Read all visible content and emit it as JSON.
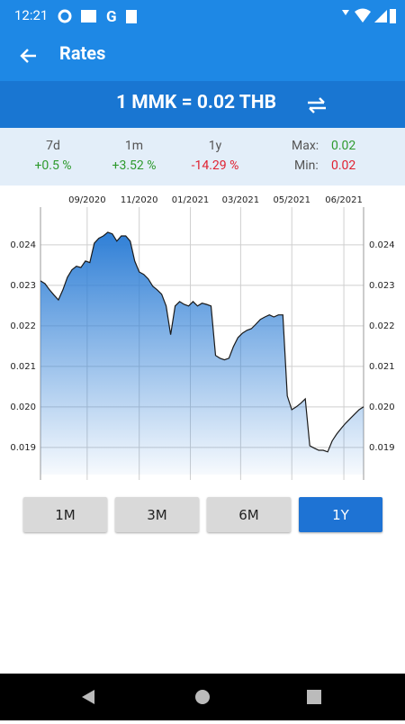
{
  "status_bar": {
    "time": "12:21"
  },
  "app_bar": {
    "title": "Rates"
  },
  "rate": "1 MMK = 0.02 THB",
  "stats": [
    {
      "label": "7d",
      "value": "+0.5 %"
    },
    {
      "label": "1m",
      "value": "+3.52 %"
    },
    {
      "label": "1y",
      "value": "-14.29 %"
    }
  ],
  "range": {
    "max_label": "Max:",
    "max": "0.02",
    "min_label": "Min:",
    "min": "0.02"
  },
  "chart_data": {
    "type": "area",
    "color": "#2f7fd6",
    "line_color": "#1a1a1a",
    "grid": true,
    "values": [
      0.02311,
      0.02304,
      0.02289,
      0.02276,
      0.02264,
      0.02289,
      0.0232,
      0.02338,
      0.02347,
      0.02344,
      0.0236,
      0.02356,
      0.02404,
      0.02416,
      0.02422,
      0.02431,
      0.02427,
      0.02409,
      0.02422,
      0.02422,
      0.02409,
      0.0236,
      0.02333,
      0.02327,
      0.02316,
      0.02298,
      0.02289,
      0.02278,
      0.02249,
      0.02178,
      0.02249,
      0.0226,
      0.02253,
      0.02249,
      0.0226,
      0.02249,
      0.02256,
      0.02253,
      0.02249,
      0.02127,
      0.0212,
      0.02116,
      0.0212,
      0.02149,
      0.02171,
      0.02182,
      0.02189,
      0.02193,
      0.02204,
      0.02216,
      0.02222,
      0.02227,
      0.02222,
      0.02227,
      0.02227,
      0.02027,
      0.01993,
      0.02,
      0.02009,
      0.0202,
      0.01904,
      0.01898,
      0.01893,
      0.01893,
      0.01889,
      0.01916,
      0.01933,
      0.01947,
      0.0196,
      0.01971,
      0.01982,
      0.01993,
      0.02
    ],
    "xlim": [
      0,
      72
    ],
    "xticks": [
      {
        "value": 10.4,
        "label": "09/2020"
      },
      {
        "value": 22,
        "label": "11/2020"
      },
      {
        "value": 33.4,
        "label": "01/2021"
      },
      {
        "value": 44.6,
        "label": "03/2021"
      },
      {
        "value": 56,
        "label": "05/2021"
      },
      {
        "value": 67.6,
        "label": "06/2021"
      }
    ],
    "ylim": [
      0.01833,
      0.02493
    ],
    "yticks": [
      0.019,
      {
        "value": 0.02,
        "label": "0.020"
      },
      0.021,
      0.022,
      0.023,
      0.024
    ]
  },
  "range_buttons": {
    "options": [
      "1M",
      "3M",
      "6M",
      "1Y"
    ],
    "selected": "1Y"
  }
}
